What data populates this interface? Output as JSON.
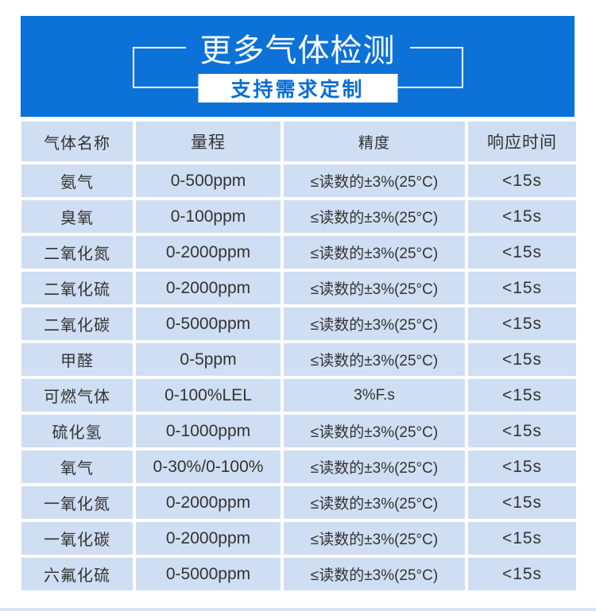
{
  "header": {
    "title": "更多气体检测",
    "subtitle": "支持需求定制"
  },
  "table": {
    "columns": [
      "气体名称",
      "量程",
      "精度",
      "响应时间"
    ],
    "column_keys": [
      "gas-name",
      "range",
      "accuracy",
      "response-time"
    ],
    "rows": [
      [
        "氨气",
        "0-500ppm",
        "≤读数的±3%(25°C)",
        "<15s"
      ],
      [
        "臭氧",
        "0-100ppm",
        "≤读数的±3%(25°C)",
        "<15s"
      ],
      [
        "二氧化氮",
        "0-2000ppm",
        "≤读数的±3%(25°C)",
        "<15s"
      ],
      [
        "二氧化硫",
        "0-2000ppm",
        "≤读数的±3%(25°C)",
        "<15s"
      ],
      [
        "二氧化碳",
        "0-5000ppm",
        "≤读数的±3%(25°C)",
        "<15s"
      ],
      [
        "甲醛",
        "0-5ppm",
        "≤读数的±3%(25°C)",
        "<15s"
      ],
      [
        "可燃气体",
        "0-100%LEL",
        "3%F.s",
        "<15s"
      ],
      [
        "硫化氢",
        "0-1000ppm",
        "≤读数的±3%(25°C)",
        "<15s"
      ],
      [
        "氧气",
        "0-30%/0-100%",
        "≤读数的±3%(25°C)",
        "<15s"
      ],
      [
        "一氧化氮",
        "0-2000ppm",
        "≤读数的±3%(25°C)",
        "<15s"
      ],
      [
        "一氧化碳",
        "0-2000ppm",
        "≤读数的±3%(25°C)",
        "<15s"
      ],
      [
        "六氟化硫",
        "0-5000ppm",
        "≤读数的±3%(25°C)",
        "<15s"
      ]
    ]
  },
  "colors": {
    "banner_blue": "#0d72d8",
    "cell_background": "#cfdef2",
    "table_text": "#333333",
    "subtitle_text": "#0b6cd5",
    "bottom_strip": "#d7e4f3"
  }
}
